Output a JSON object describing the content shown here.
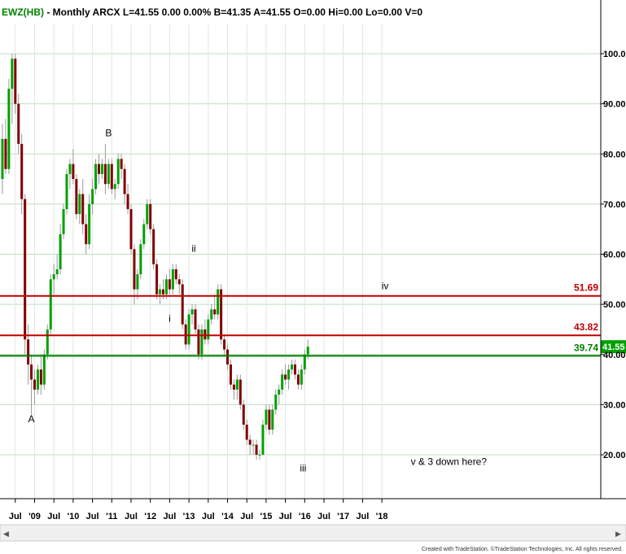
{
  "header": {
    "symbol": "EWZ(HB)",
    "info": " - Monthly  ARCX  L=41.55  0.00  0.00%  B=41.35  A=41.55  O=0.00  Hi=0.00  Lo=0.00  V=0"
  },
  "credit": "Created with TradeStation. ©TradeStation Technologies, Inc. All rights reserved.",
  "colors": {
    "up": "#00a000",
    "down": "#800000",
    "resistance": "#c00000",
    "support": "#008000",
    "last_price_box": "#00a000",
    "grid": "#c0dcc0",
    "header_symbol": "#008000"
  },
  "chart_data": {
    "type": "candlestick",
    "ylim": [
      12,
      108
    ],
    "yticks": [
      {
        "value": 20,
        "label": "20.00"
      },
      {
        "value": 30,
        "label": "30.00"
      },
      {
        "value": 40,
        "label": "40.00"
      },
      {
        "value": 50,
        "label": "50.00"
      },
      {
        "value": 60,
        "label": "60.00"
      },
      {
        "value": 70,
        "label": "70.00"
      },
      {
        "value": 80,
        "label": "80.00"
      },
      {
        "value": 90,
        "label": "90.00"
      },
      {
        "value": 100,
        "label": "100.00"
      }
    ],
    "xticks": [
      {
        "i": 4,
        "label": "Jul"
      },
      {
        "i": 10,
        "label": "'09"
      },
      {
        "i": 16,
        "label": "Jul"
      },
      {
        "i": 22,
        "label": "'10"
      },
      {
        "i": 28,
        "label": "Jul"
      },
      {
        "i": 34,
        "label": "'11"
      },
      {
        "i": 40,
        "label": "Jul"
      },
      {
        "i": 46,
        "label": "'12"
      },
      {
        "i": 52,
        "label": "Jul"
      },
      {
        "i": 58,
        "label": "'13"
      },
      {
        "i": 64,
        "label": "Jul"
      },
      {
        "i": 70,
        "label": "'14"
      },
      {
        "i": 76,
        "label": "Jul"
      },
      {
        "i": 82,
        "label": "'15"
      },
      {
        "i": 88,
        "label": "Jul"
      },
      {
        "i": 94,
        "label": "'16"
      },
      {
        "i": 100,
        "label": "Jul"
      },
      {
        "i": 106,
        "label": "'17"
      },
      {
        "i": 112,
        "label": "Jul"
      },
      {
        "i": 118,
        "label": "'18"
      }
    ],
    "levels": [
      {
        "value": 51.69,
        "label": "51.69",
        "color": "#c00000"
      },
      {
        "value": 43.82,
        "label": "43.82",
        "color": "#c00000"
      },
      {
        "value": 39.74,
        "label": "39.74",
        "color": "#008000"
      }
    ],
    "last_price": {
      "value": 41.55,
      "label": "41.55"
    },
    "annotations": [
      {
        "i": 9,
        "value": 26.5,
        "text": "A"
      },
      {
        "i": 33,
        "value": 83.5,
        "text": "B"
      },
      {
        "i": 52,
        "value": 46.5,
        "text": "i"
      },
      {
        "i": 59.5,
        "value": 60.5,
        "text": "ii"
      },
      {
        "i": 119,
        "value": 53,
        "text": "iv"
      },
      {
        "i": 93.5,
        "value": 16.7,
        "text": "iii"
      },
      {
        "i": 127,
        "value": 18,
        "text": "v & 3 down here?"
      }
    ],
    "candles": [
      {
        "o": 75,
        "h": 86,
        "l": 72,
        "c": 83
      },
      {
        "o": 83,
        "h": 87,
        "l": 76,
        "c": 77
      },
      {
        "o": 77,
        "h": 95,
        "l": 76,
        "c": 93
      },
      {
        "o": 93,
        "h": 100,
        "l": 86,
        "c": 99
      },
      {
        "o": 99,
        "h": 100,
        "l": 88,
        "c": 90
      },
      {
        "o": 90,
        "h": 92,
        "l": 80,
        "c": 82
      },
      {
        "o": 82,
        "h": 84,
        "l": 68,
        "c": 71
      },
      {
        "o": 71,
        "h": 72,
        "l": 40,
        "c": 43
      },
      {
        "o": 43,
        "h": 46,
        "l": 34,
        "c": 38
      },
      {
        "o": 38,
        "h": 40,
        "l": 28,
        "c": 35
      },
      {
        "o": 35,
        "h": 37,
        "l": 30,
        "c": 33
      },
      {
        "o": 33,
        "h": 38,
        "l": 32,
        "c": 37
      },
      {
        "o": 37,
        "h": 40,
        "l": 32,
        "c": 34
      },
      {
        "o": 34,
        "h": 41,
        "l": 33,
        "c": 40
      },
      {
        "o": 40,
        "h": 46,
        "l": 39,
        "c": 45
      },
      {
        "o": 45,
        "h": 56,
        "l": 44,
        "c": 55
      },
      {
        "o": 55,
        "h": 58,
        "l": 52,
        "c": 56
      },
      {
        "o": 56,
        "h": 60,
        "l": 55,
        "c": 57
      },
      {
        "o": 57,
        "h": 66,
        "l": 56,
        "c": 64
      },
      {
        "o": 64,
        "h": 70,
        "l": 63,
        "c": 69
      },
      {
        "o": 69,
        "h": 77,
        "l": 68,
        "c": 76
      },
      {
        "o": 76,
        "h": 79,
        "l": 73,
        "c": 78
      },
      {
        "o": 78,
        "h": 81,
        "l": 74,
        "c": 75
      },
      {
        "o": 75,
        "h": 76,
        "l": 67,
        "c": 68
      },
      {
        "o": 68,
        "h": 73,
        "l": 66,
        "c": 72
      },
      {
        "o": 72,
        "h": 75,
        "l": 64,
        "c": 66
      },
      {
        "o": 66,
        "h": 68,
        "l": 60,
        "c": 62
      },
      {
        "o": 62,
        "h": 72,
        "l": 61,
        "c": 70
      },
      {
        "o": 70,
        "h": 75,
        "l": 68,
        "c": 73
      },
      {
        "o": 73,
        "h": 79,
        "l": 72,
        "c": 78
      },
      {
        "o": 78,
        "h": 80,
        "l": 74,
        "c": 76
      },
      {
        "o": 76,
        "h": 79,
        "l": 75,
        "c": 78
      },
      {
        "o": 78,
        "h": 82,
        "l": 72,
        "c": 74
      },
      {
        "o": 74,
        "h": 79,
        "l": 73,
        "c": 78
      },
      {
        "o": 78,
        "h": 79,
        "l": 72,
        "c": 73
      },
      {
        "o": 73,
        "h": 75,
        "l": 71,
        "c": 74
      },
      {
        "o": 74,
        "h": 80,
        "l": 73,
        "c": 79
      },
      {
        "o": 79,
        "h": 80,
        "l": 75,
        "c": 77
      },
      {
        "o": 77,
        "h": 78,
        "l": 70,
        "c": 72
      },
      {
        "o": 72,
        "h": 74,
        "l": 68,
        "c": 69
      },
      {
        "o": 69,
        "h": 70,
        "l": 60,
        "c": 61
      },
      {
        "o": 61,
        "h": 62,
        "l": 50,
        "c": 53
      },
      {
        "o": 53,
        "h": 57,
        "l": 51,
        "c": 56
      },
      {
        "o": 56,
        "h": 63,
        "l": 55,
        "c": 62
      },
      {
        "o": 62,
        "h": 67,
        "l": 61,
        "c": 66
      },
      {
        "o": 66,
        "h": 71,
        "l": 65,
        "c": 70
      },
      {
        "o": 70,
        "h": 71,
        "l": 64,
        "c": 65
      },
      {
        "o": 65,
        "h": 66,
        "l": 57,
        "c": 58
      },
      {
        "o": 58,
        "h": 59,
        "l": 51,
        "c": 52
      },
      {
        "o": 52,
        "h": 54,
        "l": 50,
        "c": 53
      },
      {
        "o": 53,
        "h": 55,
        "l": 51,
        "c": 52
      },
      {
        "o": 52,
        "h": 56,
        "l": 51,
        "c": 55
      },
      {
        "o": 55,
        "h": 57,
        "l": 52,
        "c": 53
      },
      {
        "o": 53,
        "h": 58,
        "l": 52,
        "c": 57
      },
      {
        "o": 57,
        "h": 58,
        "l": 54,
        "c": 55
      },
      {
        "o": 55,
        "h": 56,
        "l": 52,
        "c": 54
      },
      {
        "o": 54,
        "h": 55,
        "l": 45,
        "c": 46
      },
      {
        "o": 46,
        "h": 47,
        "l": 41,
        "c": 42
      },
      {
        "o": 42,
        "h": 49,
        "l": 41,
        "c": 48
      },
      {
        "o": 48,
        "h": 50,
        "l": 46,
        "c": 49
      },
      {
        "o": 49,
        "h": 50,
        "l": 44,
        "c": 45
      },
      {
        "o": 45,
        "h": 46,
        "l": 39,
        "c": 40
      },
      {
        "o": 40,
        "h": 46,
        "l": 39,
        "c": 45
      },
      {
        "o": 45,
        "h": 47,
        "l": 42,
        "c": 43
      },
      {
        "o": 43,
        "h": 48,
        "l": 42,
        "c": 47
      },
      {
        "o": 47,
        "h": 50,
        "l": 46,
        "c": 49
      },
      {
        "o": 49,
        "h": 52,
        "l": 47,
        "c": 48
      },
      {
        "o": 48,
        "h": 54,
        "l": 47,
        "c": 53
      },
      {
        "o": 53,
        "h": 54,
        "l": 42,
        "c": 43
      },
      {
        "o": 43,
        "h": 44,
        "l": 40,
        "c": 41
      },
      {
        "o": 41,
        "h": 42,
        "l": 37,
        "c": 38
      },
      {
        "o": 38,
        "h": 39,
        "l": 33,
        "c": 34
      },
      {
        "o": 34,
        "h": 35,
        "l": 31,
        "c": 33
      },
      {
        "o": 33,
        "h": 36,
        "l": 31,
        "c": 35
      },
      {
        "o": 35,
        "h": 36,
        "l": 29,
        "c": 30
      },
      {
        "o": 30,
        "h": 31,
        "l": 25,
        "c": 26
      },
      {
        "o": 26,
        "h": 27,
        "l": 22,
        "c": 23
      },
      {
        "o": 23,
        "h": 24,
        "l": 20,
        "c": 22
      },
      {
        "o": 22,
        "h": 23,
        "l": 20,
        "c": 22
      },
      {
        "o": 22,
        "h": 23,
        "l": 19,
        "c": 20
      },
      {
        "o": 20,
        "h": 21,
        "l": 19,
        "c": 20
      },
      {
        "o": 20,
        "h": 27,
        "l": 20,
        "c": 26
      },
      {
        "o": 26,
        "h": 30,
        "l": 25,
        "c": 29
      },
      {
        "o": 29,
        "h": 30,
        "l": 24,
        "c": 25
      },
      {
        "o": 25,
        "h": 30,
        "l": 24,
        "c": 29
      },
      {
        "o": 29,
        "h": 33,
        "l": 28,
        "c": 32
      },
      {
        "o": 32,
        "h": 34,
        "l": 30,
        "c": 33
      },
      {
        "o": 33,
        "h": 37,
        "l": 32,
        "c": 36
      },
      {
        "o": 36,
        "h": 38,
        "l": 34,
        "c": 35
      },
      {
        "o": 35,
        "h": 38,
        "l": 33,
        "c": 37
      },
      {
        "o": 37,
        "h": 39,
        "l": 36,
        "c": 38
      },
      {
        "o": 38,
        "h": 39,
        "l": 35,
        "c": 36
      },
      {
        "o": 36,
        "h": 37,
        "l": 33,
        "c": 34
      },
      {
        "o": 34,
        "h": 38,
        "l": 33,
        "c": 37
      },
      {
        "o": 37,
        "h": 41,
        "l": 36,
        "c": 40
      },
      {
        "o": 40,
        "h": 43,
        "l": 39,
        "c": 41.55
      }
    ],
    "candle_start_index": 0,
    "candle_index_note": "use_positions"
  }
}
